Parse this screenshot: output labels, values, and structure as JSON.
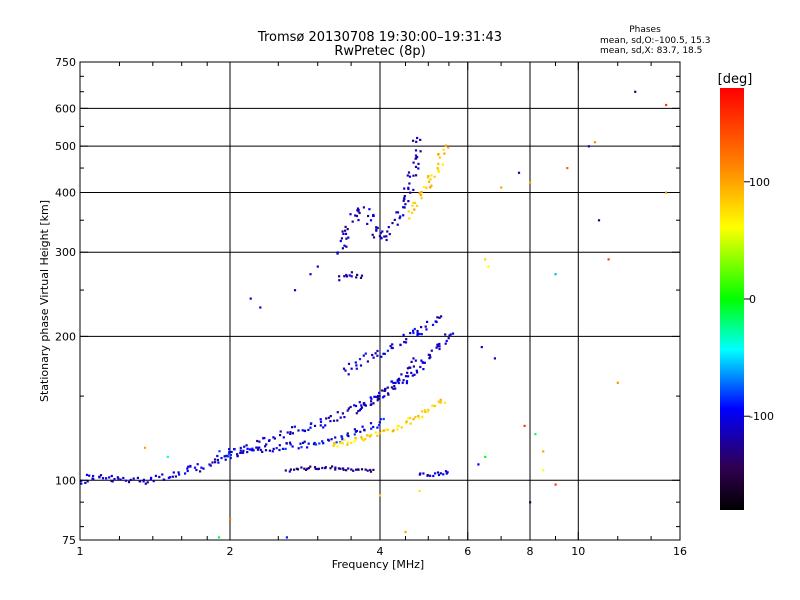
{
  "chart_data": {
    "type": "scatter",
    "title": "Tromsø 20130708 19:30:00–19:31:43",
    "subtitle": "RwPretec (8p)",
    "xlabel": "Frequency [MHz]",
    "ylabel": "Stationary phase Virtual Height [km]",
    "x_scale": "log",
    "y_scale": "log",
    "xlim": [
      1,
      16
    ],
    "ylim": [
      75,
      750
    ],
    "x_ticks": [
      1,
      2,
      4,
      6,
      8,
      10,
      16
    ],
    "x_minor_ticks": [
      1.2,
      1.4,
      1.6,
      1.8,
      2.5,
      3,
      3.5,
      4.5,
      5,
      5.5,
      7,
      9,
      12,
      14
    ],
    "y_ticks": [
      75,
      100,
      200,
      300,
      400,
      500,
      600,
      750
    ],
    "x_gridlines": [
      2,
      4,
      6,
      8,
      10
    ],
    "y_gridlines": [
      100,
      200,
      300,
      400,
      500,
      600
    ],
    "grid": true,
    "phase_box": {
      "heading": "Phases",
      "line_o": "mean, sd,O:–100.5, 15.3",
      "line_x": "mean, sd,X:  83.7, 18.5"
    },
    "colorbar": {
      "unit": "[deg]",
      "range": [
        -180,
        180
      ],
      "ticks": [
        100,
        0,
        -100
      ],
      "colors": [
        "#ff0000",
        "#ff8000",
        "#ffff00",
        "#00ff00",
        "#00ffff",
        "#0000ff",
        "#300050",
        "#000000"
      ]
    },
    "traces": [
      {
        "x": [
          1.0,
          1.05,
          1.1,
          1.2,
          1.3,
          1.4,
          1.5,
          1.6,
          1.7,
          1.8,
          1.9,
          2.0,
          2.2,
          2.4,
          2.6,
          2.8,
          3.0,
          3.2,
          3.4,
          3.6,
          3.8,
          4.0,
          4.2,
          4.4,
          4.6,
          4.8
        ],
        "y": [
          99,
          102,
          101,
          100,
          100,
          101,
          102,
          103,
          106,
          107,
          110,
          113,
          117,
          122,
          126,
          128,
          130,
          134,
          138,
          142,
          146,
          152,
          158,
          165,
          172,
          180
        ],
        "phase": -110,
        "spread": 3.5
      },
      {
        "x": [
          3.6,
          3.8,
          4.0,
          4.2,
          4.4,
          4.6,
          4.8,
          5.0,
          5.2,
          5.4,
          5.6
        ],
        "y": [
          140,
          145,
          150,
          155,
          160,
          166,
          172,
          180,
          190,
          196,
          205
        ],
        "phase": -115,
        "spread": 3
      },
      {
        "x": [
          1.9,
          2.1,
          2.3,
          2.5,
          2.7,
          2.9,
          3.1,
          3.3,
          3.5,
          3.7,
          3.9,
          4.1
        ],
        "y": [
          113,
          115,
          116,
          117,
          118,
          119,
          120,
          122,
          125,
          128,
          131,
          134
        ],
        "phase": -100,
        "spread": 3
      },
      {
        "x": [
          2.6,
          2.8,
          3.0,
          3.2,
          3.4,
          3.6,
          3.8,
          3.9
        ],
        "y": [
          105,
          106,
          106,
          106,
          106,
          105,
          105,
          105
        ],
        "phase": -130,
        "spread": 1.5
      },
      {
        "x": [
          3.2,
          3.4,
          3.6,
          3.8,
          4.0,
          4.2,
          4.4,
          4.6,
          4.8,
          5.0,
          5.2,
          5.4
        ],
        "y": [
          118,
          120,
          122,
          124,
          126,
          128,
          130,
          133,
          136,
          140,
          144,
          148
        ],
        "phase": 80,
        "spread": 2.5
      },
      {
        "x": [
          3.3,
          3.4,
          3.5,
          3.6,
          3.7,
          3.8,
          3.9,
          4.0,
          4.1,
          4.2,
          4.3,
          4.4,
          4.5,
          4.6,
          4.7,
          4.8
        ],
        "y": [
          300,
          320,
          345,
          360,
          370,
          360,
          335,
          320,
          325,
          335,
          350,
          370,
          390,
          420,
          460,
          520
        ],
        "phase": -115,
        "spread": 5
      },
      {
        "x": [
          4.6,
          4.7,
          4.8,
          4.9,
          5.0,
          5.1,
          5.2,
          5.4
        ],
        "y": [
          360,
          380,
          390,
          400,
          410,
          430,
          450,
          500
        ],
        "phase": 85,
        "spread": 4
      },
      {
        "x": [
          3.3,
          3.4,
          3.5,
          3.6,
          3.7
        ],
        "y": [
          265,
          268,
          270,
          268,
          265
        ],
        "phase": -120,
        "spread": 2
      },
      {
        "x": [
          3.4,
          3.6,
          3.8,
          4.0,
          4.2,
          4.4,
          4.6,
          4.8,
          5.0,
          5.2,
          5.4
        ],
        "y": [
          170,
          175,
          180,
          185,
          190,
          195,
          200,
          205,
          210,
          215,
          220
        ],
        "phase": -105,
        "spread": 4
      },
      {
        "x": [
          4.8,
          5.0,
          5.2,
          5.4,
          5.5
        ],
        "y": [
          103,
          103,
          103,
          104,
          104
        ],
        "phase": -110,
        "spread": 1.5
      }
    ],
    "scattered_points": [
      {
        "x": 2.2,
        "y": 240,
        "phase": -110
      },
      {
        "x": 2.3,
        "y": 230,
        "phase": -100
      },
      {
        "x": 2.7,
        "y": 250,
        "phase": -110
      },
      {
        "x": 2.9,
        "y": 270,
        "phase": -105
      },
      {
        "x": 3.0,
        "y": 280,
        "phase": -110
      },
      {
        "x": 6.5,
        "y": 290,
        "phase": 80
      },
      {
        "x": 6.6,
        "y": 280,
        "phase": 60
      },
      {
        "x": 7.0,
        "y": 410,
        "phase": 100
      },
      {
        "x": 7.6,
        "y": 440,
        "phase": -110
      },
      {
        "x": 8.0,
        "y": 420,
        "phase": 100
      },
      {
        "x": 9.5,
        "y": 450,
        "phase": 130
      },
      {
        "x": 10.5,
        "y": 500,
        "phase": -110
      },
      {
        "x": 10.8,
        "y": 510,
        "phase": 110
      },
      {
        "x": 11.0,
        "y": 350,
        "phase": -120
      },
      {
        "x": 11.5,
        "y": 290,
        "phase": 150
      },
      {
        "x": 13.0,
        "y": 650,
        "phase": -140
      },
      {
        "x": 15.0,
        "y": 610,
        "phase": 150
      },
      {
        "x": 15.0,
        "y": 400,
        "phase": 110
      },
      {
        "x": 9.0,
        "y": 270,
        "phase": -60
      },
      {
        "x": 6.4,
        "y": 190,
        "phase": -110
      },
      {
        "x": 6.8,
        "y": 180,
        "phase": -120
      },
      {
        "x": 7.8,
        "y": 130,
        "phase": 150
      },
      {
        "x": 8.2,
        "y": 125,
        "phase": -20
      },
      {
        "x": 8.5,
        "y": 115,
        "phase": 100
      },
      {
        "x": 8.0,
        "y": 90,
        "phase": -150
      },
      {
        "x": 8.5,
        "y": 105,
        "phase": 60
      },
      {
        "x": 6.3,
        "y": 108,
        "phase": -100
      },
      {
        "x": 6.5,
        "y": 112,
        "phase": 0
      },
      {
        "x": 12.0,
        "y": 160,
        "phase": 110
      },
      {
        "x": 1.35,
        "y": 117,
        "phase": 100
      },
      {
        "x": 1.5,
        "y": 112,
        "phase": -40
      },
      {
        "x": 2.0,
        "y": 83,
        "phase": 120
      },
      {
        "x": 1.9,
        "y": 76,
        "phase": -10
      },
      {
        "x": 2.6,
        "y": 76,
        "phase": -90
      },
      {
        "x": 4.5,
        "y": 78,
        "phase": 100
      },
      {
        "x": 4.8,
        "y": 95,
        "phase": 70
      },
      {
        "x": 9.0,
        "y": 98,
        "phase": 150
      },
      {
        "x": 4.0,
        "y": 93,
        "phase": 80
      }
    ]
  }
}
